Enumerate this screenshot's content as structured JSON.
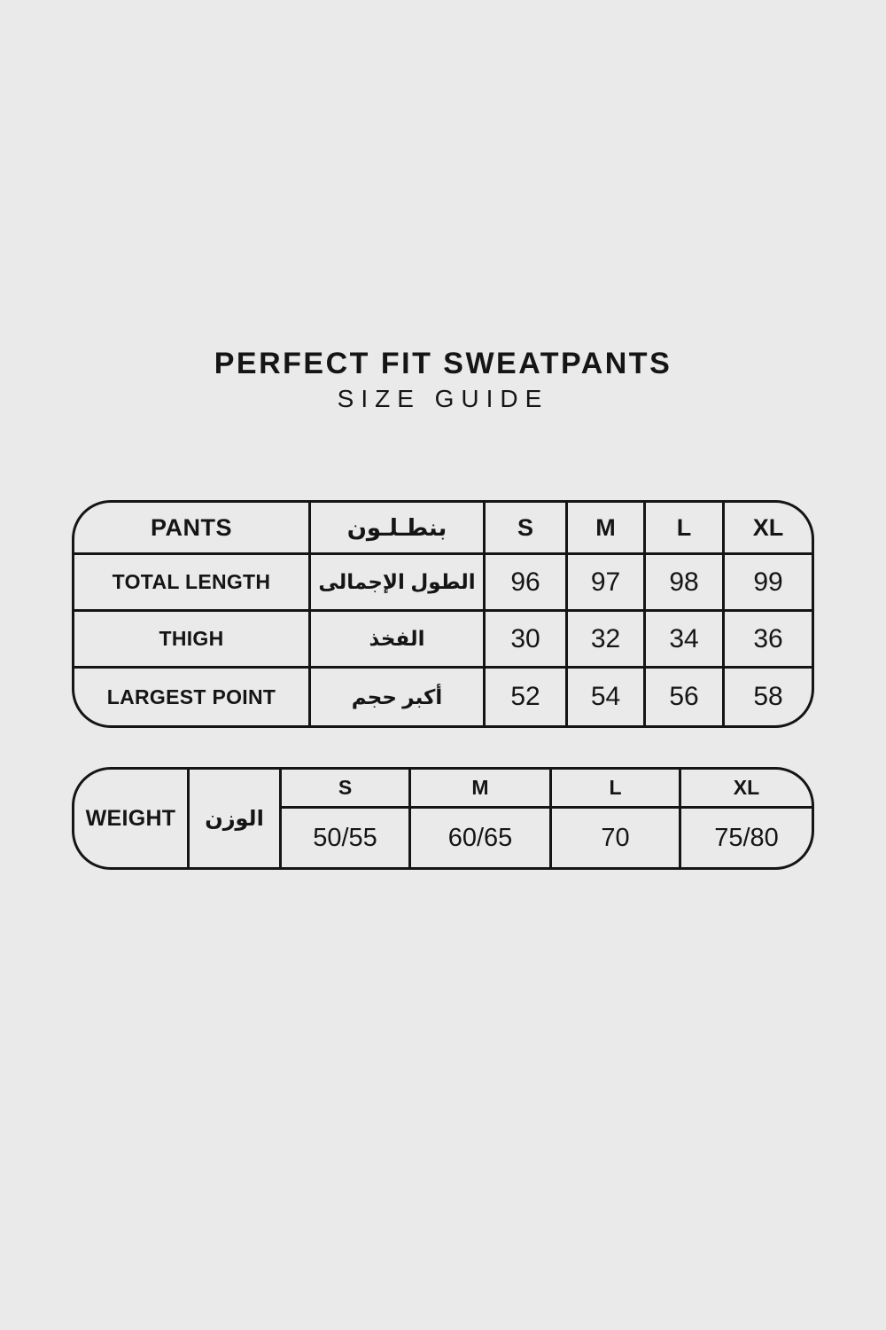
{
  "page": {
    "title": "PERFECT FIT SWEATPANTS",
    "subtitle": "SIZE GUIDE"
  },
  "colors": {
    "background": "#eaeaea",
    "line": "#151515",
    "text": "#151515"
  },
  "size_table": {
    "header": {
      "label_en": "PANTS",
      "label_ar": "بنطـلـون",
      "sizes": [
        "S",
        "M",
        "L",
        "XL"
      ]
    },
    "rows": [
      {
        "label_en": "TOTAL LENGTH",
        "label_ar": "الطول الإجمالى",
        "values": [
          "96",
          "97",
          "98",
          "99"
        ]
      },
      {
        "label_en": "THIGH",
        "label_ar": "الفخذ",
        "values": [
          "30",
          "32",
          "34",
          "36"
        ]
      },
      {
        "label_en": "LARGEST POINT",
        "label_ar": "أكبر حجم",
        "values": [
          "52",
          "54",
          "56",
          "58"
        ]
      }
    ]
  },
  "weight_table": {
    "label_en": "WEIGHT",
    "label_ar": "الوزن",
    "sizes": [
      "S",
      "M",
      "L",
      "XL"
    ],
    "values": [
      "50/55",
      "60/65",
      "70",
      "75/80"
    ]
  }
}
